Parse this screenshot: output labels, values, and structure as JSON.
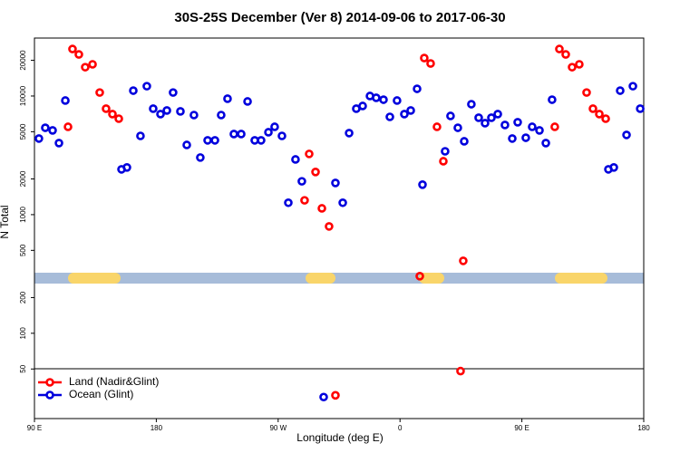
{
  "chart_data": {
    "type": "scatter",
    "title": "30S-25S December (Ver 8)   2014-09-06 to 2017-06-30",
    "x_label": "Longitude (deg E)",
    "y_label": "N Total",
    "log_y": true,
    "legend": "bottom-left",
    "xlim": [
      90,
      540
    ],
    "ylim": [
      19.1,
      30800
    ],
    "xticks": [
      {
        "value": 90,
        "label": "90 E"
      },
      180,
      {
        "value": 270,
        "label": "90 W"
      },
      {
        "value": 360,
        "label": "0"
      },
      {
        "value": 450,
        "label": "90 E"
      },
      {
        "value": 540,
        "label": "180"
      }
    ],
    "yticks": [
      50,
      100,
      200,
      500,
      1000,
      2000,
      5000,
      10000,
      20000
    ],
    "series": [
      {
        "name": "Land (Nadir&Glint)",
        "color": "#ff0000",
        "x": [
          118.1,
          122.8,
          127.5,
          132.9,
          138.2,
          142.9,
          147.6,
          152.3,
          114.8,
          289.5,
          292.9,
          297.6,
          302.3,
          307.6,
          312.3,
          377.9,
          382.6,
          387.3,
          392.0,
          374.6,
          406.7,
          404.7,
          477.7,
          482.4,
          487.1,
          492.4,
          497.8,
          502.5,
          507.2,
          511.9,
          474.3
        ],
        "values": [
          24900,
          22400,
          17500,
          18500,
          10700,
          7820,
          7040,
          6440,
          5500,
          1320,
          3250,
          2290,
          1130,
          796,
          30,
          20900,
          18800,
          5500,
          2820,
          303,
          408,
          48,
          24900,
          22400,
          17500,
          18500,
          10700,
          7820,
          7040,
          6440,
          5500
        ]
      },
      {
        "name": "Ocean (Glint)",
        "color": "#0000dd",
        "x": [
          93.3,
          98.0,
          103.4,
          108.1,
          112.8,
          154.3,
          158.3,
          163.0,
          168.3,
          173.0,
          177.7,
          183.1,
          187.8,
          192.4,
          197.8,
          202.5,
          207.8,
          212.5,
          217.9,
          223.3,
          227.9,
          232.6,
          237.3,
          242.7,
          247.4,
          252.7,
          257.4,
          262.8,
          267.4,
          272.8,
          277.5,
          282.8,
          287.5,
          312.3,
          317.7,
          322.4,
          327.7,
          332.4,
          337.8,
          342.4,
          347.8,
          352.5,
          357.8,
          363.2,
          367.9,
          372.6,
          376.6,
          393.3,
          397.3,
          402.7,
          407.4,
          412.7,
          418.1,
          422.8,
          427.5,
          432.2,
          437.5,
          442.9,
          446.9,
          452.9,
          457.6,
          463.0,
          467.7,
          472.3,
          513.9,
          517.9,
          522.6,
          527.3,
          532.0,
          537.4,
          303.6
        ],
        "values": [
          4380,
          5400,
          5130,
          4010,
          9160,
          2410,
          2500,
          11100,
          4610,
          12100,
          7820,
          7040,
          7550,
          10700,
          7420,
          3870,
          6910,
          3030,
          4230,
          4230,
          6910,
          9490,
          4780,
          4780,
          9000,
          4230,
          4230,
          4950,
          5500,
          4610,
          1260,
          2920,
          1910,
          1850,
          1260,
          4870,
          7820,
          8240,
          10000,
          9660,
          9310,
          6670,
          9160,
          7040,
          7550,
          11500,
          1790,
          3420,
          6790,
          5400,
          4150,
          8530,
          6560,
          5900,
          6560,
          7040,
          5700,
          4380,
          6010,
          4450,
          5500,
          5130,
          4010,
          9310,
          2410,
          2500,
          11100,
          4700,
          12100,
          7820,
          29
        ]
      }
    ]
  }
}
